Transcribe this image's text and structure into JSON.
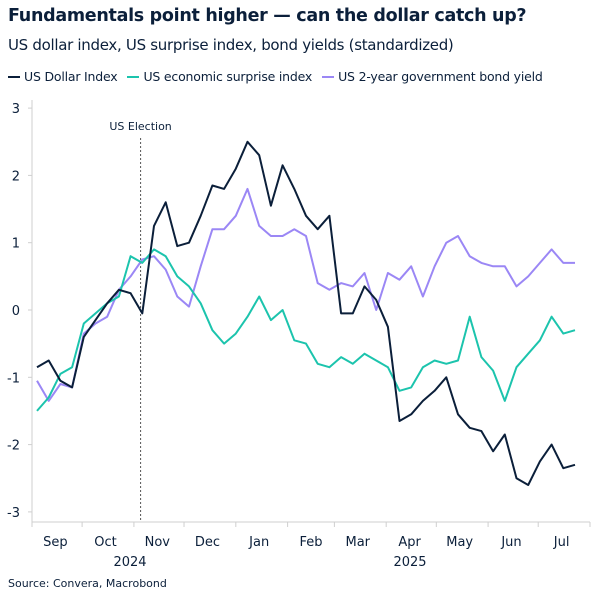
{
  "chart_data": {
    "type": "line",
    "title": "Fundamentals point higher — can the dollar catch up?",
    "subtitle": "US dollar index, US surprise index, bond yields (standardized)",
    "source": "Source: Convera, Macrobond",
    "ylim": [
      -3.2,
      3.1
    ],
    "y_ticks": [
      "3",
      "2",
      "1",
      "0",
      "-1",
      "-2",
      "-3"
    ],
    "y_tick_values": [
      3,
      2,
      1,
      0,
      -1,
      -2,
      -3
    ],
    "x_month_labels": [
      "Sep",
      "Oct",
      "Nov",
      "Dec",
      "Jan",
      "Feb",
      "Mar",
      "Apr",
      "May",
      "Jun",
      "Jul"
    ],
    "x_year_labels": [
      "2024",
      "2025"
    ],
    "xlim": [
      "2024-09-01",
      "2025-08-01"
    ],
    "grid": false,
    "legend_position": "top",
    "annotation": {
      "label": "US Election",
      "date": "2024-11-05"
    },
    "x": [
      "2024-09-04",
      "2024-09-11",
      "2024-09-18",
      "2024-09-25",
      "2024-10-02",
      "2024-10-09",
      "2024-10-16",
      "2024-10-23",
      "2024-10-30",
      "2024-11-06",
      "2024-11-13",
      "2024-11-20",
      "2024-11-27",
      "2024-12-04",
      "2024-12-11",
      "2024-12-18",
      "2024-12-25",
      "2025-01-01",
      "2025-01-08",
      "2025-01-15",
      "2025-01-22",
      "2025-01-29",
      "2025-02-05",
      "2025-02-12",
      "2025-02-19",
      "2025-02-26",
      "2025-03-05",
      "2025-03-12",
      "2025-03-19",
      "2025-03-26",
      "2025-04-02",
      "2025-04-09",
      "2025-04-16",
      "2025-04-23",
      "2025-04-30",
      "2025-05-07",
      "2025-05-14",
      "2025-05-21",
      "2025-05-28",
      "2025-06-04",
      "2025-06-11",
      "2025-06-18",
      "2025-06-25",
      "2025-07-02",
      "2025-07-09",
      "2025-07-16",
      "2025-07-23"
    ],
    "series": [
      {
        "name": "US Dollar Index",
        "color": "#0b1f3a",
        "values": [
          -0.85,
          -0.75,
          -1.05,
          -1.15,
          -0.4,
          -0.15,
          0.1,
          0.3,
          0.25,
          -0.05,
          1.25,
          1.6,
          0.95,
          1.0,
          1.4,
          1.85,
          1.8,
          2.1,
          2.5,
          2.3,
          1.55,
          2.15,
          1.8,
          1.4,
          1.2,
          1.4,
          -0.05,
          -0.05,
          0.35,
          0.15,
          -0.25,
          -1.65,
          -1.55,
          -1.35,
          -1.2,
          -1.0,
          -1.55,
          -1.75,
          -1.8,
          -2.1,
          -1.85,
          -2.5,
          -2.6,
          -2.25,
          -2.0,
          -2.35,
          -2.3
        ]
      },
      {
        "name": "US economic surprise index",
        "color": "#1cc4ad",
        "values": [
          -1.5,
          -1.3,
          -0.95,
          -0.85,
          -0.2,
          -0.05,
          0.1,
          0.2,
          0.8,
          0.7,
          0.9,
          0.8,
          0.5,
          0.35,
          0.1,
          -0.3,
          -0.5,
          -0.35,
          -0.1,
          0.2,
          -0.15,
          0,
          -0.45,
          -0.5,
          -0.8,
          -0.85,
          -0.7,
          -0.8,
          -0.65,
          -0.75,
          -0.85,
          -1.2,
          -1.15,
          -0.85,
          -0.75,
          -0.8,
          -0.75,
          -0.1,
          -0.7,
          -0.9,
          -1.35,
          -0.85,
          -0.65,
          -0.45,
          -0.1,
          -0.35,
          -0.3
        ]
      },
      {
        "name": "US 2-year government bond yield",
        "color": "#9b87f5",
        "values": [
          -1.05,
          -1.35,
          -1.1,
          -1.15,
          -0.35,
          -0.2,
          -0.1,
          0.3,
          0.5,
          0.75,
          0.8,
          0.6,
          0.2,
          0.05,
          0.65,
          1.2,
          1.2,
          1.4,
          1.8,
          1.25,
          1.1,
          1.1,
          1.2,
          1.1,
          0.4,
          0.3,
          0.4,
          0.35,
          0.55,
          0,
          0.55,
          0.45,
          0.65,
          0.2,
          0.65,
          1.0,
          1.1,
          0.8,
          0.7,
          0.65,
          0.65,
          0.35,
          0.5,
          0.7,
          0.9,
          0.7,
          0.7
        ]
      }
    ]
  }
}
